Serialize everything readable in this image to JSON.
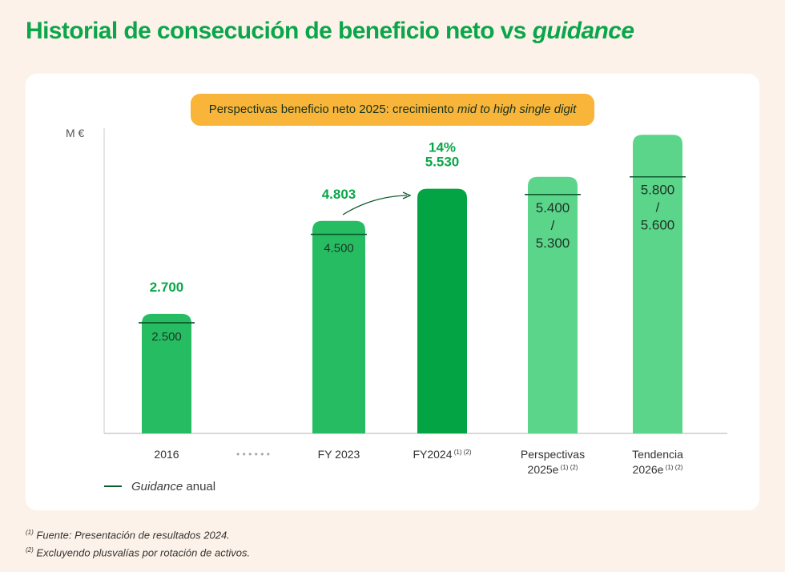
{
  "title": {
    "main": "Historial de consecución de beneficio neto vs ",
    "italic": "guidance"
  },
  "banner": {
    "main": "Perspectivas beneficio neto 2025: crecimiento ",
    "italic": "mid to high single digit"
  },
  "legend": {
    "italic": "Guidance",
    "rest": " anual"
  },
  "footnotes": [
    {
      "mark": "(1)",
      "text": "Fuente: Presentación de resultados 2024."
    },
    {
      "mark": "(2)",
      "text": "Excluyendo plusvalías por rotación de activos."
    }
  ],
  "colors": {
    "title": "#0aa64a",
    "bar": "#26bd62",
    "bar_highlight": "#03a443",
    "bar_projection": "#5bd58a",
    "guidance": "#0c5a2e",
    "banner": "#f8b53a",
    "background": "#fdf2e9"
  },
  "chart_data": {
    "type": "bar",
    "ylabel": "M €",
    "ylim": [
      0,
      6900
    ],
    "gap_marker": "• • • • • •",
    "categories": [
      {
        "label": "2016",
        "sup": ""
      },
      {
        "label": "FY 2023",
        "sup": ""
      },
      {
        "label": "FY2024",
        "sup": "(1) (2)"
      },
      {
        "label": "Perspectivas\n2025e",
        "sup": "(1) (2)"
      },
      {
        "label": "Tendencia\n2026e",
        "sup": "(1) (2)"
      }
    ],
    "series": [
      {
        "name": "Beneficio neto",
        "values": [
          2700,
          4803,
          5530,
          5800,
          6750
        ]
      },
      {
        "name": "Guidance anual",
        "values": [
          2500,
          4500,
          null,
          5400,
          5800
        ]
      }
    ],
    "value_labels": [
      "2.700",
      "4.803",
      "5.530",
      "",
      ""
    ],
    "guidance_labels": [
      "2.500",
      "4.500",
      "",
      "5.400\n/\n5.300",
      "5.800\n/\n5.600"
    ],
    "growth_annotation": "14%"
  }
}
